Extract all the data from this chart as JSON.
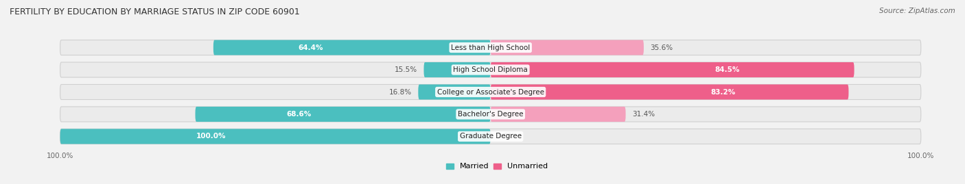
{
  "title": "FERTILITY BY EDUCATION BY MARRIAGE STATUS IN ZIP CODE 60901",
  "source": "Source: ZipAtlas.com",
  "categories": [
    "Less than High School",
    "High School Diploma",
    "College or Associate's Degree",
    "Bachelor's Degree",
    "Graduate Degree"
  ],
  "married": [
    64.4,
    15.5,
    16.8,
    68.6,
    100.0
  ],
  "unmarried": [
    35.6,
    84.5,
    83.2,
    31.4,
    0.0
  ],
  "married_color": "#4BBFBF",
  "unmarried_color_dark": "#EE5F8A",
  "unmarried_color_light": "#F4A0BC",
  "bg_color": "#f2f2f2",
  "bar_bg_color": "#e8e8e8",
  "bar_height": 0.68,
  "title_fontsize": 9,
  "label_fontsize": 7.5,
  "legend_fontsize": 8,
  "source_fontsize": 7.5
}
